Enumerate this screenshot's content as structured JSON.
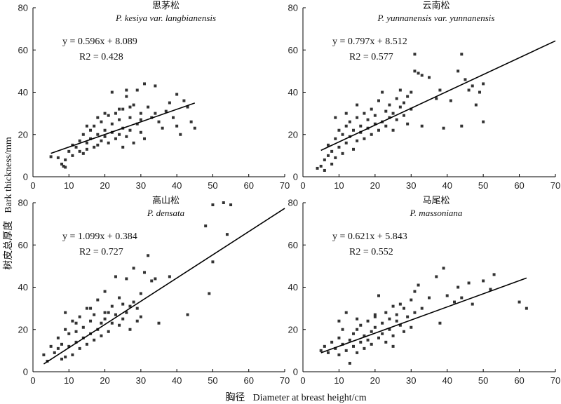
{
  "figure": {
    "xlabel_cn": "胸径",
    "xlabel_en": "Diameter at breast height/cm",
    "ylabel_cn": "树皮总厚度",
    "ylabel_en": "Bark thickness/mm"
  },
  "chart_data": [
    {
      "type": "scatter",
      "title_cn": "思茅松",
      "title_en": "P. kesiya var. langbianensis",
      "equation": "y = 0.596x + 8.089",
      "r2_label": "R2 = 0.428",
      "fit": {
        "slope": 0.596,
        "intercept": 8.089,
        "x_range": [
          5,
          45
        ]
      },
      "xlim": [
        0,
        70
      ],
      "ylim": [
        0,
        80
      ],
      "xticks": [
        0,
        10,
        20,
        30,
        40,
        50,
        60,
        70
      ],
      "yticks": [
        0,
        20,
        40,
        60,
        80
      ],
      "points": [
        [
          5,
          9.5
        ],
        [
          7,
          9
        ],
        [
          8,
          6
        ],
        [
          8.5,
          5
        ],
        [
          9,
          4.5
        ],
        [
          9,
          8
        ],
        [
          10,
          12
        ],
        [
          11,
          15
        ],
        [
          11,
          10
        ],
        [
          12,
          14
        ],
        [
          13,
          12
        ],
        [
          13,
          17
        ],
        [
          14,
          11
        ],
        [
          14,
          20
        ],
        [
          15,
          16
        ],
        [
          15,
          13
        ],
        [
          16,
          22
        ],
        [
          16,
          18
        ],
        [
          17,
          14
        ],
        [
          17,
          24
        ],
        [
          18,
          15
        ],
        [
          18,
          20
        ],
        [
          19,
          26
        ],
        [
          19,
          17
        ],
        [
          20,
          19
        ],
        [
          20,
          22
        ],
        [
          21,
          29
        ],
        [
          21,
          16
        ],
        [
          22,
          21
        ],
        [
          22,
          25
        ],
        [
          23,
          30
        ],
        [
          23,
          18
        ],
        [
          24,
          27
        ],
        [
          24,
          20
        ],
        [
          25,
          23
        ],
        [
          25,
          32
        ],
        [
          26,
          38
        ],
        [
          26,
          19
        ],
        [
          27,
          28
        ],
        [
          27,
          22
        ],
        [
          28,
          34
        ],
        [
          28,
          16
        ],
        [
          29,
          25
        ],
        [
          29,
          41
        ],
        [
          30,
          30
        ],
        [
          30,
          21
        ],
        [
          31,
          44
        ],
        [
          31,
          18
        ],
        [
          32,
          33
        ],
        [
          33,
          28
        ],
        [
          34,
          43
        ],
        [
          34,
          30
        ],
        [
          35,
          26
        ],
        [
          36,
          23
        ],
        [
          37,
          31
        ],
        [
          38,
          35
        ],
        [
          39,
          28
        ],
        [
          40,
          39
        ],
        [
          40,
          24
        ],
        [
          41,
          20
        ],
        [
          42,
          36
        ],
        [
          43,
          33
        ],
        [
          44,
          26
        ],
        [
          45,
          23
        ],
        [
          15,
          24
        ],
        [
          20,
          30
        ],
        [
          22,
          40
        ],
        [
          25,
          14
        ],
        [
          26,
          41
        ],
        [
          18,
          28
        ],
        [
          24,
          32
        ],
        [
          27,
          33
        ],
        [
          30,
          27
        ]
      ]
    },
    {
      "type": "scatter",
      "title_cn": "云南松",
      "title_en": "P. yunnanensis var. yunnanensis",
      "equation": "y = 0.797x + 8.512",
      "r2_label": "R2 = 0.577",
      "fit": {
        "slope": 0.797,
        "intercept": 8.512,
        "x_range": [
          5,
          70
        ]
      },
      "xlim": [
        0,
        70
      ],
      "ylim": [
        0,
        80
      ],
      "xticks": [
        0,
        10,
        20,
        30,
        40,
        50,
        60,
        70
      ],
      "yticks": [
        0,
        20,
        40,
        60,
        80
      ],
      "points": [
        [
          4,
          4
        ],
        [
          5,
          5
        ],
        [
          6,
          3
        ],
        [
          6,
          8
        ],
        [
          7,
          10
        ],
        [
          7,
          15
        ],
        [
          8,
          6
        ],
        [
          8,
          12
        ],
        [
          9,
          18
        ],
        [
          9,
          9
        ],
        [
          10,
          22
        ],
        [
          10,
          14
        ],
        [
          11,
          20
        ],
        [
          11,
          11
        ],
        [
          12,
          24
        ],
        [
          12,
          16
        ],
        [
          13,
          19
        ],
        [
          13,
          26
        ],
        [
          14,
          13
        ],
        [
          14,
          22
        ],
        [
          15,
          28
        ],
        [
          15,
          17
        ],
        [
          16,
          21
        ],
        [
          16,
          24
        ],
        [
          17,
          30
        ],
        [
          17,
          18
        ],
        [
          18,
          23
        ],
        [
          18,
          27
        ],
        [
          19,
          20
        ],
        [
          19,
          32
        ],
        [
          20,
          25
        ],
        [
          20,
          29
        ],
        [
          21,
          36
        ],
        [
          21,
          22
        ],
        [
          22,
          40
        ],
        [
          22,
          26
        ],
        [
          23,
          31
        ],
        [
          23,
          24
        ],
        [
          24,
          28
        ],
        [
          24,
          34
        ],
        [
          25,
          30
        ],
        [
          25,
          22
        ],
        [
          26,
          37
        ],
        [
          26,
          27
        ],
        [
          27,
          33
        ],
        [
          27,
          41
        ],
        [
          28,
          29
        ],
        [
          28,
          35
        ],
        [
          29,
          38
        ],
        [
          29,
          25
        ],
        [
          30,
          32
        ],
        [
          30,
          40
        ],
        [
          31,
          50
        ],
        [
          31,
          58
        ],
        [
          32,
          49
        ],
        [
          33,
          48
        ],
        [
          33,
          24
        ],
        [
          35,
          47
        ],
        [
          37,
          37
        ],
        [
          38,
          41
        ],
        [
          39,
          23
        ],
        [
          41,
          36
        ],
        [
          43,
          50
        ],
        [
          44,
          58
        ],
        [
          45,
          46
        ],
        [
          46,
          41
        ],
        [
          47,
          43
        ],
        [
          48,
          34
        ],
        [
          49,
          40
        ],
        [
          50,
          26
        ],
        [
          50,
          44
        ],
        [
          44,
          24
        ],
        [
          9,
          28
        ],
        [
          12,
          30
        ],
        [
          15,
          34
        ]
      ]
    },
    {
      "type": "scatter",
      "title_cn": "高山松",
      "title_en": "P. densata",
      "equation": "y = 1.099x + 0.384",
      "r2_label": "R2 = 0.727",
      "fit": {
        "slope": 1.099,
        "intercept": 0.384,
        "x_range": [
          3,
          70
        ]
      },
      "xlim": [
        0,
        70
      ],
      "ylim": [
        0,
        80
      ],
      "xticks": [
        0,
        10,
        20,
        30,
        40,
        50,
        60,
        70
      ],
      "yticks": [
        0,
        20,
        40,
        60,
        80
      ],
      "points": [
        [
          3,
          8
        ],
        [
          4,
          5
        ],
        [
          5,
          12
        ],
        [
          6,
          9
        ],
        [
          7,
          11
        ],
        [
          7,
          16
        ],
        [
          8,
          6
        ],
        [
          8,
          13
        ],
        [
          9,
          7
        ],
        [
          9,
          20
        ],
        [
          10,
          12
        ],
        [
          10,
          18
        ],
        [
          11,
          8
        ],
        [
          11,
          24
        ],
        [
          12,
          14
        ],
        [
          12,
          19
        ],
        [
          13,
          11
        ],
        [
          13,
          26
        ],
        [
          14,
          16
        ],
        [
          14,
          21
        ],
        [
          15,
          13
        ],
        [
          15,
          30
        ],
        [
          16,
          18
        ],
        [
          16,
          24
        ],
        [
          17,
          15
        ],
        [
          17,
          27
        ],
        [
          18,
          20
        ],
        [
          18,
          34
        ],
        [
          19,
          23
        ],
        [
          19,
          17
        ],
        [
          20,
          25
        ],
        [
          20,
          38
        ],
        [
          21,
          19
        ],
        [
          21,
          28
        ],
        [
          22,
          23
        ],
        [
          22,
          31
        ],
        [
          23,
          27
        ],
        [
          23,
          45
        ],
        [
          24,
          22
        ],
        [
          24,
          35
        ],
        [
          25,
          32
        ],
        [
          25,
          25
        ],
        [
          26,
          44
        ],
        [
          26,
          28
        ],
        [
          27,
          31
        ],
        [
          27,
          20
        ],
        [
          28,
          49
        ],
        [
          28,
          33
        ],
        [
          29,
          30
        ],
        [
          29,
          24
        ],
        [
          30,
          37
        ],
        [
          30,
          26
        ],
        [
          31,
          47
        ],
        [
          32,
          55
        ],
        [
          33,
          43
        ],
        [
          34,
          44
        ],
        [
          35,
          23
        ],
        [
          38,
          45
        ],
        [
          43,
          27
        ],
        [
          48,
          69
        ],
        [
          49,
          37
        ],
        [
          50,
          79
        ],
        [
          50,
          52
        ],
        [
          53,
          80
        ],
        [
          54,
          65
        ],
        [
          55,
          79
        ],
        [
          9,
          28
        ],
        [
          12,
          23
        ],
        [
          16,
          30
        ],
        [
          20,
          28
        ]
      ]
    },
    {
      "type": "scatter",
      "title_cn": "马尾松",
      "title_en": "P. massoniana",
      "equation": "y = 0.621x + 5.843",
      "r2_label": "R2 = 0.552",
      "fit": {
        "slope": 0.621,
        "intercept": 5.843,
        "x_range": [
          5,
          62
        ]
      },
      "xlim": [
        0,
        70
      ],
      "ylim": [
        0,
        80
      ],
      "xticks": [
        0,
        10,
        20,
        30,
        40,
        50,
        60,
        70
      ],
      "yticks": [
        0,
        20,
        40,
        60,
        80
      ],
      "points": [
        [
          5,
          10
        ],
        [
          6,
          12
        ],
        [
          7,
          9
        ],
        [
          8,
          14
        ],
        [
          9,
          11
        ],
        [
          10,
          8
        ],
        [
          10,
          16
        ],
        [
          11,
          13
        ],
        [
          11,
          20
        ],
        [
          12,
          10
        ],
        [
          12,
          28
        ],
        [
          13,
          15
        ],
        [
          13,
          4
        ],
        [
          14,
          18
        ],
        [
          14,
          12
        ],
        [
          15,
          20
        ],
        [
          15,
          9
        ],
        [
          16,
          14
        ],
        [
          16,
          22
        ],
        [
          17,
          17
        ],
        [
          17,
          11
        ],
        [
          18,
          24
        ],
        [
          18,
          15
        ],
        [
          19,
          19
        ],
        [
          19,
          13
        ],
        [
          20,
          21
        ],
        [
          20,
          26
        ],
        [
          21,
          16
        ],
        [
          21,
          36
        ],
        [
          22,
          23
        ],
        [
          22,
          18
        ],
        [
          23,
          28
        ],
        [
          23,
          14
        ],
        [
          24,
          25
        ],
        [
          24,
          20
        ],
        [
          25,
          31
        ],
        [
          25,
          17
        ],
        [
          26,
          24
        ],
        [
          26,
          27
        ],
        [
          27,
          22
        ],
        [
          27,
          32
        ],
        [
          28,
          30
        ],
        [
          28,
          19
        ],
        [
          29,
          26
        ],
        [
          30,
          34
        ],
        [
          30,
          21
        ],
        [
          31,
          28
        ],
        [
          31,
          38
        ],
        [
          32,
          41
        ],
        [
          33,
          30
        ],
        [
          35,
          35
        ],
        [
          37,
          45
        ],
        [
          38,
          23
        ],
        [
          39,
          49
        ],
        [
          40,
          36
        ],
        [
          42,
          33
        ],
        [
          43,
          40
        ],
        [
          44,
          35
        ],
        [
          46,
          42
        ],
        [
          47,
          32
        ],
        [
          50,
          43
        ],
        [
          52,
          39
        ],
        [
          53,
          46
        ],
        [
          60,
          33
        ],
        [
          62,
          30
        ],
        [
          10,
          24
        ],
        [
          15,
          25
        ],
        [
          20,
          27
        ],
        [
          25,
          12
        ]
      ]
    }
  ]
}
